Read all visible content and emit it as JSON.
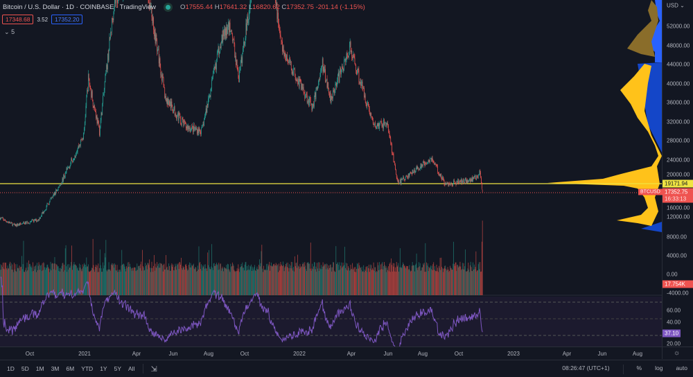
{
  "header": {
    "title": "Bitcoin / U.S. Dollar · 1D · COINBASE · TradingView",
    "open_label": "O",
    "open": "17555.44",
    "high_label": "H",
    "high": "17641.32",
    "low_label": "L",
    "low": "16820.62",
    "close_label": "C",
    "close": "17352.75",
    "change": "-201.14 (-1.15%)",
    "bid": "17348.68",
    "spread": "3.52",
    "ask": "17352.20",
    "indicators_toggle": "5"
  },
  "price_axis": {
    "currency": "USD",
    "ticks": [
      "52000.00",
      "48000.00",
      "44000.00",
      "40000.00",
      "36000.00",
      "32000.00",
      "28000.00",
      "24000.00",
      "20000.00",
      "16000.00",
      "12000.00",
      "8000.00",
      "4000.00",
      "0.00",
      "-4000.00"
    ],
    "poc_label": "19171.94",
    "symbol_label": "BTCUSD",
    "last_price": "17352.75",
    "countdown": "16:33:13",
    "volume_label": "17.754K"
  },
  "rsi_axis": {
    "ticks": [
      "60.00",
      "40.00",
      "20.00"
    ],
    "value": "37.10"
  },
  "time_axis": {
    "ticks": [
      "Oct",
      "2021",
      "Apr",
      "Jun",
      "Aug",
      "Oct",
      "2022",
      "Apr",
      "Jun",
      "Aug",
      "Oct",
      "2023",
      "Apr",
      "Jun",
      "Aug"
    ]
  },
  "toolbar": {
    "ranges": [
      "1D",
      "5D",
      "1M",
      "3M",
      "6M",
      "YTD",
      "1Y",
      "5Y",
      "All"
    ],
    "clock": "08:26:47 (UTC+1)",
    "percent": "%",
    "log": "log",
    "auto": "auto"
  },
  "colors": {
    "up": "#26a69a",
    "down": "#ef5350",
    "poc": "#f0e442",
    "profile_value_area": "#ffc21a",
    "profile_outside": "#8a6d2a",
    "profile_bg": "#2962ff",
    "rsi": "#7e57c2"
  },
  "price_path": [
    [
      "2020-08-11",
      11800
    ],
    [
      "2020-09-05",
      10200
    ],
    [
      "2020-10-15",
      11400
    ],
    [
      "2020-11-20",
      18500
    ],
    [
      "2020-12-31",
      29000
    ],
    [
      "2021-01-08",
      41000
    ],
    [
      "2021-01-27",
      30000
    ],
    [
      "2021-02-21",
      57000
    ],
    [
      "2021-03-13",
      61000
    ],
    [
      "2021-04-14",
      63500
    ],
    [
      "2021-05-19",
      37000
    ],
    [
      "2021-06-22",
      31000
    ],
    [
      "2021-07-20",
      30000
    ],
    [
      "2021-08-22",
      49500
    ],
    [
      "2021-09-07",
      52000
    ],
    [
      "2021-09-21",
      41000
    ],
    [
      "2021-10-20",
      66000
    ],
    [
      "2021-11-10",
      68000
    ],
    [
      "2021-12-04",
      47000
    ],
    [
      "2022-01-24",
      35000
    ],
    [
      "2022-02-10",
      44000
    ],
    [
      "2022-02-24",
      37000
    ],
    [
      "2022-03-29",
      47500
    ],
    [
      "2022-05-09",
      31000
    ],
    [
      "2022-05-31",
      31700
    ],
    [
      "2022-06-18",
      19000
    ],
    [
      "2022-08-14",
      24400
    ],
    [
      "2022-09-07",
      18800
    ],
    [
      "2022-10-25",
      20000
    ],
    [
      "2022-11-05",
      21300
    ],
    [
      "2022-11-09",
      17352
    ]
  ]
}
